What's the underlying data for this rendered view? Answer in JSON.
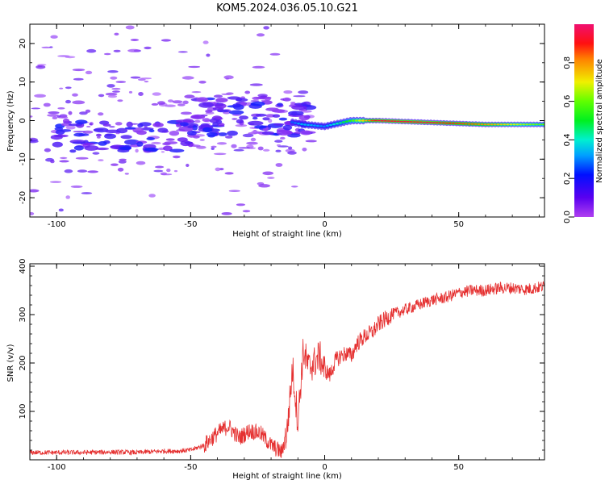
{
  "figure": {
    "title": "KOM5.2024.036.05.10.G21"
  },
  "colors": {
    "snr_line": "#e53030",
    "axis": "#000000"
  },
  "chart_data": [
    {
      "type": "heatmap",
      "title": "",
      "xlabel": "Height of straight line (km)",
      "ylabel": "Frequency (Hz)",
      "xlim": [
        -110,
        82
      ],
      "ylim": [
        -25,
        25
      ],
      "x_ticks": [
        -100,
        -50,
        0,
        50
      ],
      "y_ticks": [
        -20,
        -10,
        0,
        10,
        20
      ],
      "colorbar": {
        "label": "Normalized spectral amplitude",
        "range": [
          0,
          1
        ],
        "ticks": [
          0.0,
          0.2,
          0.4,
          0.6,
          0.8
        ],
        "colormap": "gist_rainbow (purple to red)"
      },
      "description_points": [
        {
          "x": -95,
          "y": -5,
          "amp": 0.15
        },
        {
          "x": -80,
          "y": -7,
          "amp": 0.1
        },
        {
          "x": -70,
          "y": -2,
          "amp": 0.12
        },
        {
          "x": -50,
          "y": 1,
          "amp": 0.12
        },
        {
          "x": -45,
          "y": 0,
          "amp": 0.15
        },
        {
          "x": -37,
          "y": 4,
          "amp": 0.2
        },
        {
          "x": -25,
          "y": 4,
          "amp": 0.18
        },
        {
          "x": -15,
          "y": 0,
          "amp": 0.2
        },
        {
          "x": -8,
          "y": -1,
          "amp": 0.35
        },
        {
          "x": 0,
          "y": -1.5,
          "amp": 0.3
        },
        {
          "x": 10,
          "y": 0,
          "amp": 0.55
        },
        {
          "x": 20,
          "y": 0,
          "amp": 0.95
        },
        {
          "x": 40,
          "y": -0.5,
          "amp": 0.95
        },
        {
          "x": 60,
          "y": -1,
          "amp": 0.8
        },
        {
          "x": 80,
          "y": -1,
          "amp": 0.6
        }
      ]
    },
    {
      "type": "line",
      "title": "",
      "xlabel": "Height of straight line (km)",
      "ylabel": "SNR (v/v)",
      "xlim": [
        -110,
        82
      ],
      "ylim": [
        0,
        405
      ],
      "x_ticks": [
        -100,
        -50,
        0,
        50
      ],
      "y_ticks": [
        100,
        200,
        300,
        400
      ],
      "series": [
        {
          "color": "#e53030",
          "x": [
            -110,
            -100,
            -90,
            -80,
            -70,
            -60,
            -55,
            -50,
            -45,
            -40,
            -36,
            -32,
            -28,
            -24,
            -20,
            -16,
            -14,
            -12,
            -10,
            -8,
            -6,
            -4,
            -2,
            0,
            2,
            4,
            6,
            8,
            10,
            12,
            15,
            18,
            20,
            25,
            30,
            35,
            40,
            45,
            50,
            55,
            60,
            65,
            70,
            75,
            82
          ],
          "values": [
            15,
            15,
            15,
            16,
            15,
            18,
            18,
            20,
            30,
            55,
            70,
            45,
            60,
            55,
            30,
            15,
            60,
            190,
            80,
            225,
            190,
            200,
            215,
            185,
            175,
            205,
            215,
            220,
            215,
            240,
            255,
            265,
            280,
            300,
            310,
            320,
            330,
            335,
            345,
            350,
            350,
            355,
            355,
            352,
            358
          ]
        }
      ]
    }
  ]
}
